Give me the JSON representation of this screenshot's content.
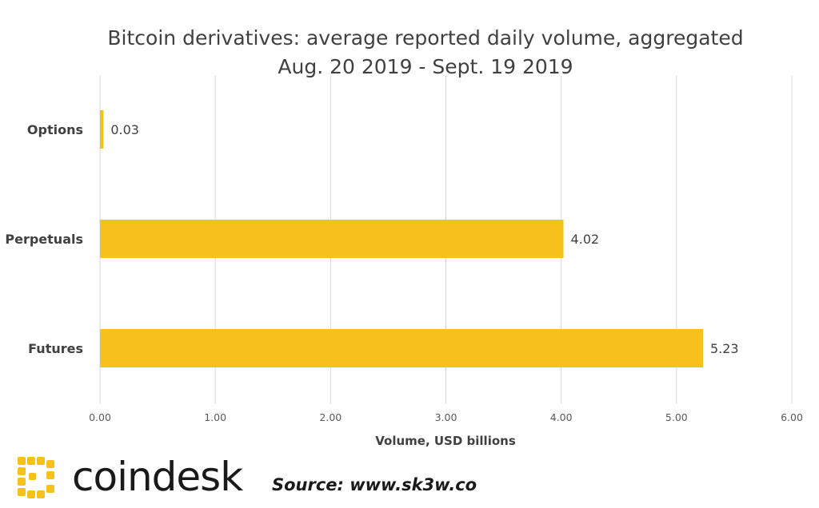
{
  "chart_data": {
    "type": "bar",
    "orientation": "horizontal",
    "title": "Bitcoin derivatives: average reported daily volume, aggregated",
    "subtitle": "Aug. 20 2019 - Sept. 19 2019",
    "categories": [
      "Options",
      "Perpetuals",
      "Futures"
    ],
    "values": [
      0.03,
      4.02,
      5.23
    ],
    "data_labels": [
      "0.03",
      "4.02",
      "5.23"
    ],
    "xlabel": "Volume, USD billions",
    "ylabel": "",
    "xlim": [
      0,
      6
    ],
    "xticks": [
      "0.00",
      "1.00",
      "2.00",
      "3.00",
      "4.00",
      "5.00",
      "6.00"
    ],
    "grid": true,
    "bar_color": "#F7C11B"
  },
  "branding": {
    "logo_text": "coindesk",
    "logo_color": "#F7C11B",
    "source": "Source: www.sk3w.co"
  }
}
